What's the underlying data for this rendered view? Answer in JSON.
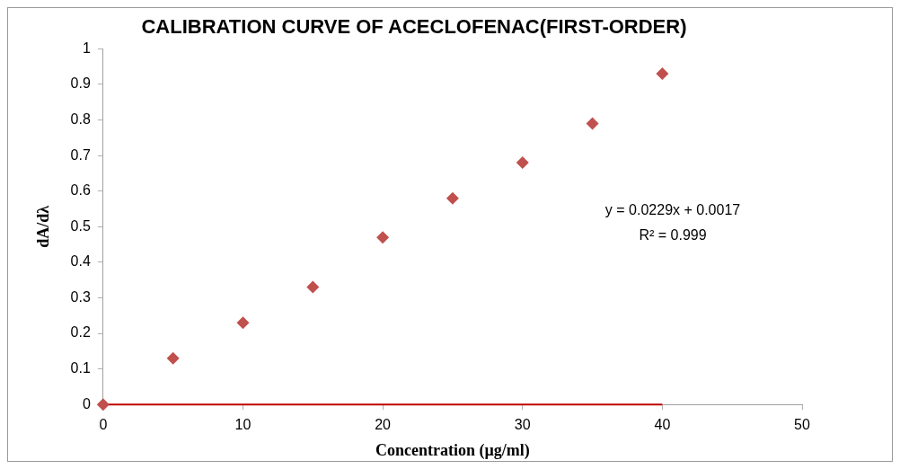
{
  "chart_data": {
    "type": "scatter",
    "title": "CALIBRATION CURVE OF ACECLOFENAC(FIRST-ORDER)",
    "xlabel": "Concentration (µg/ml)",
    "ylabel": "dA/dλ",
    "series": [
      {
        "type": "scatter",
        "color": "#c0504d",
        "marker": "diamond",
        "x": [
          0,
          5,
          10,
          15,
          20,
          25,
          30,
          35,
          40
        ],
        "values": [
          0,
          0.13,
          0.23,
          0.33,
          0.47,
          0.58,
          0.68,
          0.79,
          0.93
        ]
      },
      {
        "type": "line",
        "color": "#c00000",
        "marker": "none",
        "x": [
          0,
          40
        ],
        "values": [
          0,
          0
        ]
      }
    ],
    "xlim": [
      0,
      50
    ],
    "xticks": [
      0,
      10,
      20,
      30,
      40,
      50
    ],
    "ylim": [
      0,
      1
    ],
    "yticks": [
      0,
      0.1,
      0.2,
      0.3,
      0.4,
      0.5,
      0.6,
      0.7,
      0.8,
      0.9,
      1
    ],
    "grid": false,
    "legend": false,
    "annotations": [
      "y = 0.0229x + 0.0017",
      "R² = 0.999"
    ]
  }
}
